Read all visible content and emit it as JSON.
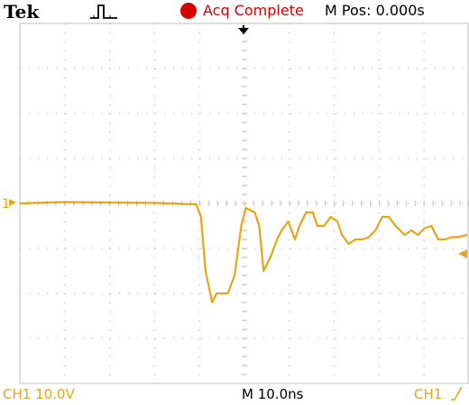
{
  "header": {
    "brand": "Tek",
    "acquire_mode_icon": "single-pulse-icon",
    "acq_status": "Acq Complete",
    "horizontal_position": "M Pos: 0.000s"
  },
  "footer": {
    "channel_scale": "CH1  10.0V",
    "timebase": "M 10.0ns",
    "trigger_source": "CH1"
  },
  "markers": {
    "ch1_ground_label": "1",
    "trigger_position_icon": "trigger-position-arrow-icon",
    "trigger_level_icon": "trigger-level-arrow-icon",
    "trigger_slope_icon": "rising-edge-icon"
  },
  "colors": {
    "ch1": "#e8a317",
    "acq_status": "#d40000",
    "grid": "#bcbcbc"
  },
  "chart_data": {
    "type": "line",
    "grid": true,
    "x_divisions": 10,
    "y_divisions": 8,
    "xlim": [
      -50,
      50
    ],
    "ylim": [
      -40,
      40
    ],
    "series": [
      {
        "x": [
          -50,
          -40,
          -30,
          -20,
          -10.6,
          -9.5,
          -8.5,
          -7,
          -6,
          -5,
          -3.5,
          -2,
          -0.5,
          0.5,
          1.5,
          2.5,
          3.5,
          4.5,
          6,
          7.5,
          8.5,
          10,
          11.5,
          12.5,
          14,
          15.5,
          16.5,
          18,
          19.5,
          21,
          22,
          23.5,
          25,
          26.5,
          28,
          29.5,
          31,
          32.5,
          34,
          36,
          37.5,
          39,
          40.5,
          42,
          43.5,
          45,
          46.5,
          48,
          50
        ],
        "y": [
          0,
          0.3,
          0.2,
          0.1,
          -0.2,
          -3,
          -15,
          -22,
          -20,
          -20,
          -20,
          -16,
          -5,
          -1,
          -1.5,
          -2,
          -5,
          -15,
          -12,
          -8,
          -6,
          -4,
          -8,
          -5,
          -2,
          -2,
          -5,
          -5,
          -3,
          -4,
          -7,
          -9,
          -8,
          -8,
          -7.5,
          -6,
          -3,
          -3,
          -5,
          -7,
          -6,
          -7,
          -5.5,
          -5,
          -8,
          -8,
          -7.5,
          -7.5,
          -7
        ]
      }
    ]
  }
}
